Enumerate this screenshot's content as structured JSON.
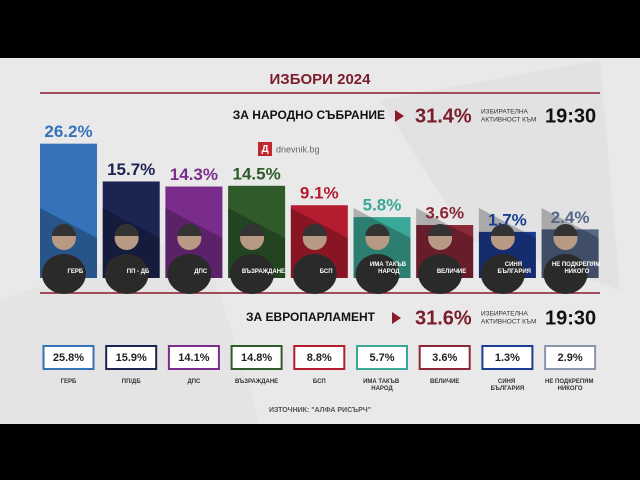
{
  "title": "ИЗБОРИ 2024",
  "watermark": "dnevnik.bg",
  "watermark_icon": "Д",
  "source": "ИЗТОЧНИК: \"АЛФА РИСЪРЧ\"",
  "chart_data": [
    {
      "type": "bar",
      "title": "ЗА НАРОДНО СЪБРАНИЕ",
      "turnout": "31.4%",
      "turnout_caption": [
        "ИЗБИРАТЕЛНА",
        "АКТИВНОСТ КЪМ"
      ],
      "time": "19:30",
      "categories": [
        "ГЕРБ",
        "ПП - ДБ",
        "ДПС",
        "ВЪЗРАЖДАНЕ",
        "БСП",
        "ИМА ТАКЪВ НАРОД",
        "ВЕЛИЧИЕ",
        "СИНЯ БЪЛГАРИЯ",
        "НЕ ПОДКРЕПЯМ НИКОГО"
      ],
      "values": [
        26.2,
        15.7,
        14.3,
        14.5,
        9.1,
        5.8,
        3.6,
        1.7,
        2.4
      ],
      "value_labels": [
        "26.2%",
        "15.7%",
        "14.3%",
        "14.5%",
        "9.1%",
        "5.8%",
        "3.6%",
        "1.7%",
        "2.4%"
      ],
      "colors": [
        "#3572b8",
        "#1c2452",
        "#7a2c8c",
        "#2f5b2b",
        "#b41c30",
        "#3aa896",
        "#8a2838",
        "#1c3d94",
        "#56678a"
      ]
    },
    {
      "type": "tiles",
      "title": "ЗА ЕВРОПАРЛАМЕНТ",
      "turnout": "31.6%",
      "turnout_caption": [
        "ИЗБИРАТЕЛНА",
        "АКТИВНОСТ КЪМ"
      ],
      "time": "19:30",
      "categories": [
        "ГЕРБ",
        "ПП/ДБ",
        "ДПС",
        "ВЪЗРАЖДАНЕ",
        "БСП",
        "ИМА ТАКЪВ НАРОД",
        "ВЕЛИЧИЕ",
        "СИНЯ БЪЛГАРИЯ",
        "НЕ ПОДКРЕПЯМ НИКОГО"
      ],
      "values": [
        25.8,
        15.9,
        14.1,
        14.8,
        8.8,
        5.7,
        3.6,
        1.3,
        2.9
      ],
      "value_labels": [
        "25.8%",
        "15.9%",
        "14.1%",
        "14.8%",
        "8.8%",
        "5.7%",
        "3.6%",
        "1.3%",
        "2.9%"
      ],
      "colors": [
        "#3572b8",
        "#1c2452",
        "#7a2c8c",
        "#2f5b2b",
        "#b41c30",
        "#3aa896",
        "#8a2838",
        "#1c3d94",
        "#8a96ac"
      ]
    }
  ]
}
